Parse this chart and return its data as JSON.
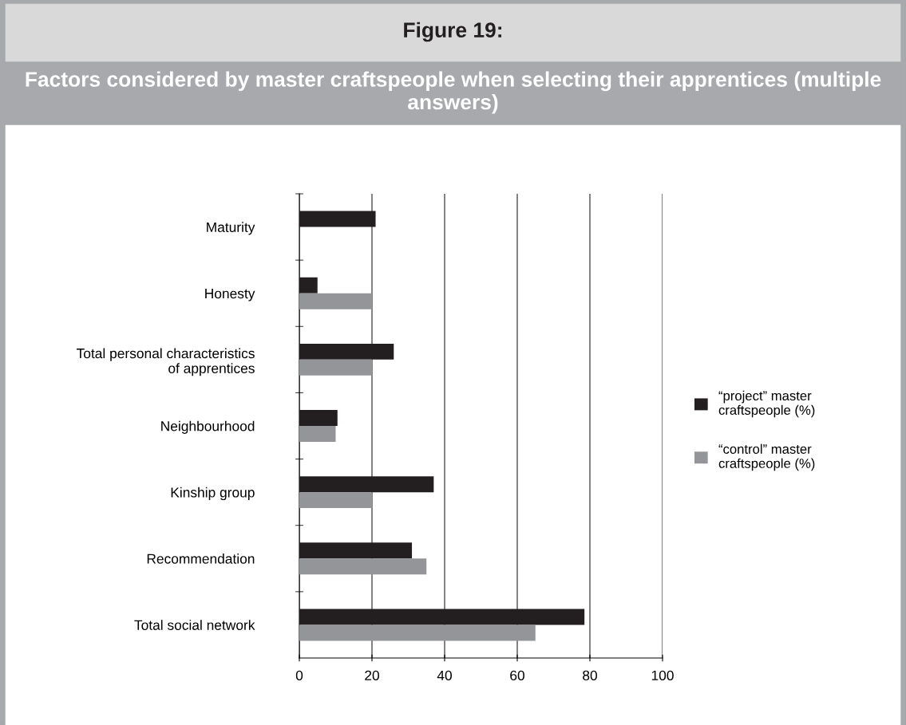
{
  "chart_data": {
    "type": "bar",
    "orientation": "horizontal",
    "title": "Figure 19:",
    "subtitle": "Factors considered by master craftspeople when selecting their apprentices (multiple answers)",
    "categories": [
      "Maturity",
      "Honesty",
      "Total personal characteristics\nof apprentices",
      "Neighbourhood",
      "Kinship group",
      "Recommendation",
      "Total social network"
    ],
    "series": [
      {
        "name": "“project” master\ncraftspeople (%)",
        "color": "#231f20",
        "values": [
          21,
          5,
          26,
          10.5,
          37,
          31,
          78.5
        ]
      },
      {
        "name": "“control” master\ncraftspeople (%)",
        "color": "#939598",
        "values": [
          null,
          20,
          20,
          10,
          20,
          35,
          65
        ]
      }
    ],
    "xlim": [
      0,
      100
    ],
    "xticks": [
      0,
      20,
      40,
      60,
      80,
      100
    ],
    "grid": "x",
    "legend": "right"
  }
}
